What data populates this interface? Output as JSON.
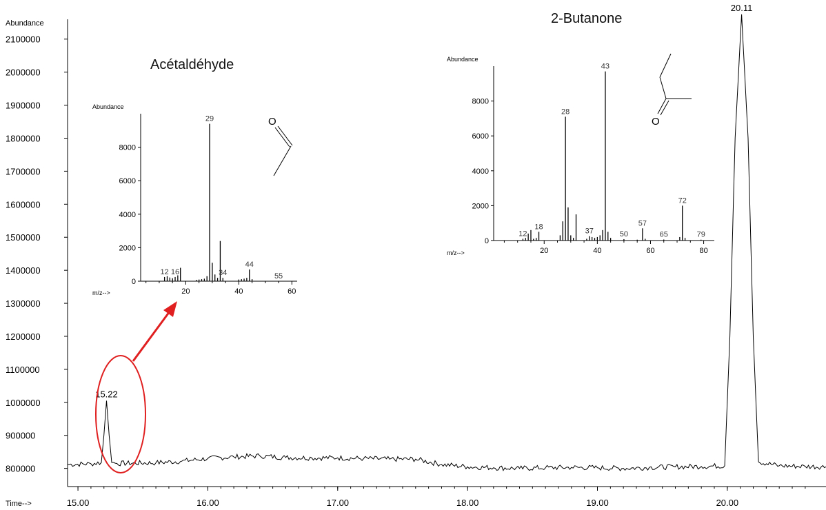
{
  "colors": {
    "line": "#000000",
    "annotation": "#e02020"
  },
  "chart_data": [
    {
      "type": "line",
      "title": "",
      "xlabel": "Time-->",
      "ylabel": "Abundance",
      "xlim": [
        14.92,
        20.76
      ],
      "ylim": [
        745000,
        2160000
      ],
      "x_ticks": [
        15.0,
        16.0,
        17.0,
        18.0,
        19.0,
        20.0
      ],
      "x_tick_labels": [
        "15.00",
        "16.00",
        "17.00",
        "18.00",
        "19.00",
        "20.00"
      ],
      "y_ticks": [
        800000,
        900000,
        1000000,
        1100000,
        1200000,
        1300000,
        1400000,
        1500000,
        1600000,
        1700000,
        1800000,
        1900000,
        2000000,
        2100000
      ],
      "y_tick_labels": [
        "800000",
        "900000",
        "1000000",
        "1100000",
        "1200000",
        "1300000",
        "1400000",
        "1500000",
        "1600000",
        "1700000",
        "1800000",
        "1900000",
        "2000000",
        "2100000"
      ],
      "grid": false,
      "series": [
        {
          "x": [
            14.92,
            15.1,
            15.18,
            15.2,
            15.22,
            15.24,
            15.26,
            15.3,
            15.6,
            15.8,
            16.0,
            16.2,
            16.4,
            16.6,
            16.8,
            17.0,
            17.2,
            17.4,
            17.6,
            17.8,
            18.0,
            18.2,
            18.4,
            18.6,
            18.8,
            19.0,
            19.2,
            19.4,
            19.6,
            19.8,
            19.98,
            20.02,
            20.06,
            20.11,
            20.16,
            20.2,
            20.24,
            20.4,
            20.6,
            20.76
          ],
          "y": [
            812000,
            814000,
            818000,
            900000,
            1005000,
            900000,
            818000,
            815000,
            817000,
            822000,
            830000,
            835000,
            838000,
            833000,
            832000,
            832000,
            830000,
            828000,
            828000,
            812000,
            805000,
            802000,
            800000,
            802000,
            803000,
            802000,
            800000,
            803000,
            805000,
            806000,
            808000,
            1200000,
            1800000,
            2175000,
            1800000,
            1200000,
            820000,
            808000,
            806000,
            805000
          ]
        }
      ],
      "peak_labels": [
        {
          "x": 15.22,
          "y": 1005000,
          "label": "15.22"
        },
        {
          "x": 20.11,
          "y": 2175000,
          "label": "20.11"
        }
      ]
    },
    {
      "type": "bar",
      "title": "Acétaldéhyde",
      "xlabel": "m/z-->",
      "ylabel": "Abundance",
      "xlim": [
        3,
        62
      ],
      "ylim": [
        0,
        10000
      ],
      "x_ticks": [
        20,
        40,
        60
      ],
      "x_tick_labels": [
        "20",
        "40",
        "60"
      ],
      "y_ticks": [
        0,
        2000,
        4000,
        6000,
        8000
      ],
      "y_tick_labels": [
        "0",
        "2000",
        "4000",
        "6000",
        "8000"
      ],
      "x": [
        12,
        13,
        14,
        15,
        16,
        17,
        18,
        24,
        25,
        26,
        27,
        28,
        29,
        30,
        31,
        32,
        33,
        34,
        40,
        41,
        42,
        43,
        44,
        45
      ],
      "values": [
        250,
        300,
        220,
        180,
        250,
        350,
        800,
        80,
        100,
        120,
        150,
        300,
        9400,
        1100,
        400,
        200,
        2400,
        200,
        100,
        120,
        150,
        200,
        700,
        120
      ],
      "peak_labels": [
        {
          "x": 12,
          "label": "12"
        },
        {
          "x": 16,
          "label": "16"
        },
        {
          "x": 29,
          "label": "29"
        },
        {
          "x": 34,
          "label": "34"
        },
        {
          "x": 44,
          "label": "44"
        },
        {
          "x": 55,
          "label": "55"
        }
      ]
    },
    {
      "type": "bar",
      "title": "2-Butanone",
      "xlabel": "m/z-->",
      "ylabel": "Abundance",
      "xlim": [
        1,
        84
      ],
      "ylim": [
        0,
        10000
      ],
      "x_ticks": [
        20,
        40,
        60,
        80
      ],
      "x_tick_labels": [
        "20",
        "40",
        "60",
        "80"
      ],
      "y_ticks": [
        0,
        2000,
        4000,
        6000,
        8000
      ],
      "y_tick_labels": [
        "0",
        "2000",
        "4000",
        "6000",
        "8000"
      ],
      "x": [
        12,
        13,
        14,
        15,
        16,
        17,
        18,
        26,
        27,
        28,
        29,
        30,
        31,
        32,
        36,
        37,
        38,
        39,
        40,
        41,
        42,
        43,
        44,
        45,
        50,
        55,
        57,
        58,
        65,
        71,
        72,
        73,
        79
      ],
      "values": [
        100,
        150,
        400,
        600,
        100,
        150,
        500,
        300,
        1100,
        7100,
        1900,
        300,
        150,
        1500,
        100,
        250,
        200,
        150,
        200,
        300,
        600,
        9700,
        500,
        150,
        80,
        50,
        700,
        100,
        60,
        200,
        2000,
        150,
        50
      ],
      "peak_labels": [
        {
          "x": 12,
          "label": "12"
        },
        {
          "x": 18,
          "label": "18"
        },
        {
          "x": 28,
          "label": "28"
        },
        {
          "x": 37,
          "label": "37"
        },
        {
          "x": 43,
          "label": "43"
        },
        {
          "x": 50,
          "label": "50"
        },
        {
          "x": 57,
          "label": "57"
        },
        {
          "x": 65,
          "label": "65"
        },
        {
          "x": 72,
          "label": "72"
        },
        {
          "x": 79,
          "label": "79"
        }
      ],
      "structure": {
        "oxygen_label": "O"
      }
    }
  ],
  "structures": {
    "acetaldehyde": {
      "oxygen_label": "O"
    }
  }
}
